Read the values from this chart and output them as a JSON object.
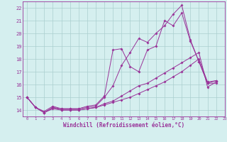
{
  "xlabel": "Windchill (Refroidissement éolien,°C)",
  "bg_color": "#d5efef",
  "grid_color": "#aacece",
  "line_color": "#993399",
  "xlim": [
    -0.5,
    23
  ],
  "ylim": [
    13.5,
    22.5
  ],
  "xticks": [
    0,
    1,
    2,
    3,
    4,
    5,
    6,
    7,
    8,
    9,
    10,
    11,
    12,
    13,
    14,
    15,
    16,
    17,
    18,
    19,
    20,
    21,
    22,
    23
  ],
  "yticks": [
    14,
    15,
    16,
    17,
    18,
    19,
    20,
    21,
    22
  ],
  "lines": [
    {
      "x": [
        0,
        1,
        2,
        3,
        4,
        5,
        6,
        7,
        8,
        9,
        10,
        11,
        12,
        13,
        14,
        15,
        16,
        17,
        18,
        19,
        20,
        21,
        22
      ],
      "y": [
        15.0,
        14.2,
        13.8,
        14.2,
        14.1,
        14.1,
        14.1,
        14.2,
        14.3,
        15.0,
        15.9,
        17.5,
        18.5,
        19.6,
        19.3,
        20.0,
        20.6,
        21.5,
        22.2,
        19.5,
        17.8,
        16.1,
        16.1
      ]
    },
    {
      "x": [
        0,
        1,
        2,
        3,
        4,
        5,
        6,
        7,
        8,
        9,
        10,
        11,
        12,
        13,
        14,
        15,
        16,
        17,
        18,
        19,
        20,
        21,
        22
      ],
      "y": [
        15.0,
        14.2,
        13.9,
        14.3,
        14.1,
        14.1,
        14.1,
        14.3,
        14.4,
        15.1,
        18.7,
        18.8,
        17.4,
        17.0,
        18.7,
        19.0,
        21.0,
        20.6,
        21.6,
        19.4,
        17.8,
        16.1,
        16.3
      ]
    },
    {
      "x": [
        0,
        1,
        2,
        3,
        4,
        5,
        6,
        7,
        8,
        9,
        10,
        11,
        12,
        13,
        14,
        15,
        16,
        17,
        18,
        19,
        20,
        21,
        22
      ],
      "y": [
        15.0,
        14.2,
        13.8,
        14.2,
        14.0,
        14.0,
        14.0,
        14.1,
        14.2,
        14.5,
        14.7,
        15.1,
        15.5,
        15.9,
        16.1,
        16.5,
        16.9,
        17.3,
        17.7,
        18.1,
        18.5,
        15.8,
        16.2
      ]
    },
    {
      "x": [
        0,
        1,
        2,
        3,
        4,
        5,
        6,
        7,
        8,
        9,
        10,
        11,
        12,
        13,
        14,
        15,
        16,
        17,
        18,
        19,
        20,
        21,
        22
      ],
      "y": [
        15.0,
        14.2,
        13.8,
        14.1,
        14.0,
        14.0,
        14.0,
        14.1,
        14.2,
        14.4,
        14.6,
        14.8,
        15.0,
        15.3,
        15.6,
        15.9,
        16.2,
        16.6,
        17.0,
        17.5,
        18.0,
        16.2,
        16.3
      ]
    }
  ]
}
